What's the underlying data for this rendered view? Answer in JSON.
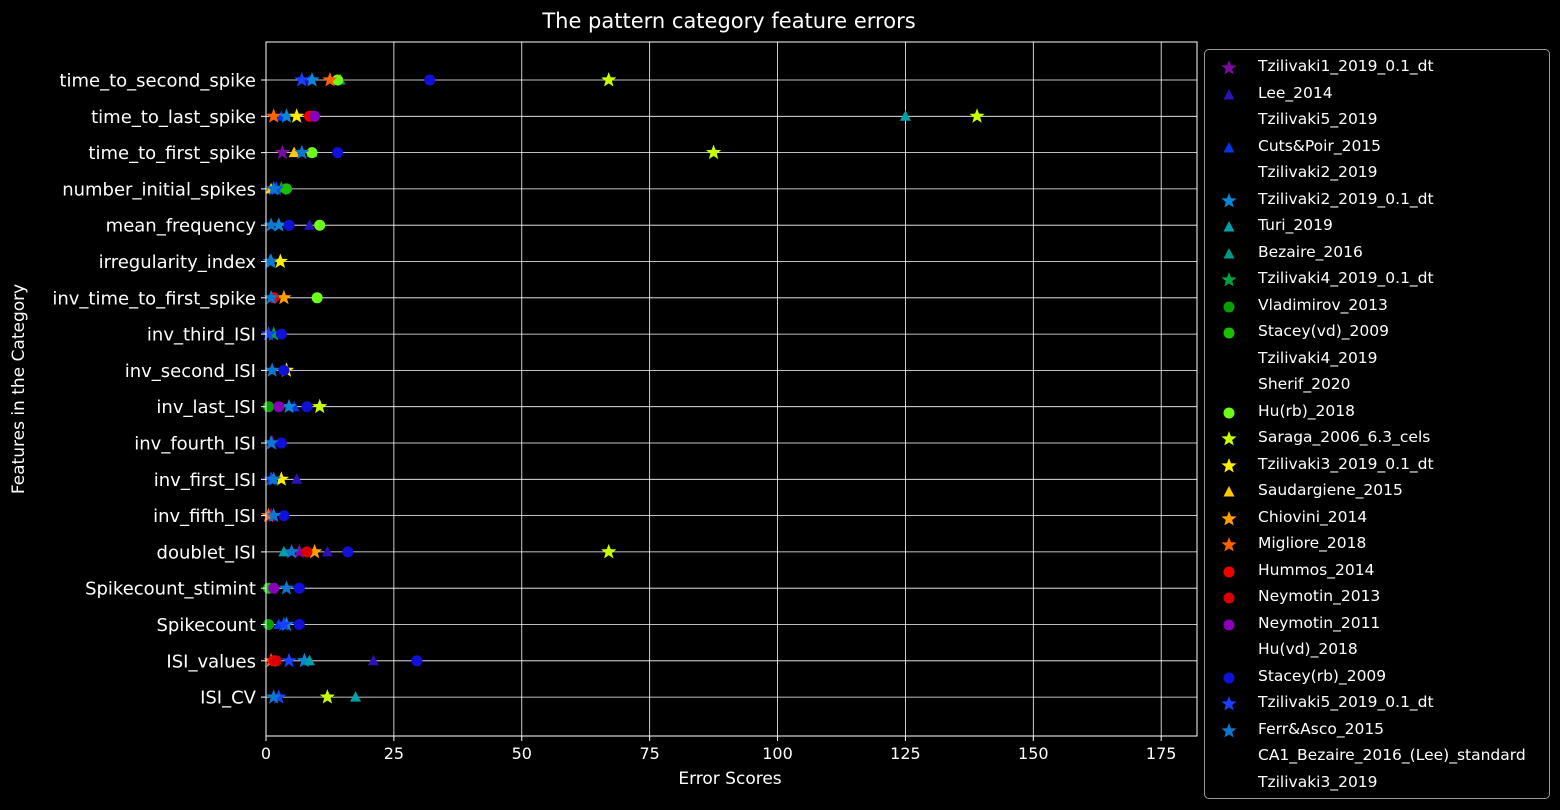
{
  "chart_data": {
    "type": "scatter",
    "orientation": "horizontal",
    "title": "The pattern category feature errors",
    "xlabel": "Error Scores",
    "ylabel": "Features in the Category",
    "xlim": [
      0,
      182
    ],
    "xticks": [
      0,
      25,
      50,
      75,
      100,
      125,
      150,
      175
    ],
    "grid": true,
    "legend_position": "outside-right",
    "categories": [
      "time_to_second_spike",
      "time_to_last_spike",
      "time_to_first_spike",
      "number_initial_spikes",
      "mean_frequency",
      "irregularity_index",
      "inv_time_to_first_spike",
      "inv_third_ISI",
      "inv_second_ISI",
      "inv_last_ISI",
      "inv_fourth_ISI",
      "inv_first_ISI",
      "inv_fifth_ISI",
      "doublet_ISI",
      "Spikecount_stimint",
      "Spikecount",
      "ISI_values",
      "ISI_CV"
    ],
    "series": [
      {
        "name": "Tzilivaki1_2019_0.1_dt",
        "color": "#7b0aa0",
        "marker": "star",
        "values": {
          "time_to_first_spike": 3.2,
          "inv_fourth_ISI": 1.2,
          "inv_fifth_ISI": 1.0,
          "doublet_ISI": 6.5
        }
      },
      {
        "name": "Lee_2014",
        "color": "#2a12b8",
        "marker": "triangle",
        "values": {
          "time_to_second_spike": 8.5,
          "mean_frequency": 8.5,
          "inv_first_ISI": 6.0,
          "ISI_values": 21.0,
          "doublet_ISI": 12.0
        }
      },
      {
        "name": "Tzilivaki5_2019",
        "color": "#000000",
        "marker": "none",
        "values": {}
      },
      {
        "name": "Cuts&Poir_2015",
        "color": "#0035e8",
        "marker": "triangle",
        "values": {
          "time_to_last_spike": 3.0,
          "inv_last_ISI": 5.5,
          "Spikecount": 2.5
        }
      },
      {
        "name": "Tzilivaki2_2019",
        "color": "#000000",
        "marker": "none",
        "values": {}
      },
      {
        "name": "Tzilivaki2_2019_0.1_dt",
        "color": "#0a88d8",
        "marker": "star",
        "values": {
          "time_to_second_spike": 9.0,
          "time_to_last_spike": 4.0,
          "mean_frequency": 2.5,
          "irregularity_index": 1.0,
          "inv_last_ISI": 4.5,
          "ISI_values": 7.5,
          "Spikecount": 4.0
        }
      },
      {
        "name": "Turi_2019",
        "color": "#00a0a8",
        "marker": "triangle",
        "values": {
          "time_to_last_spike": 125.0,
          "ISI_CV": 17.5,
          "ISI_values": 8.5,
          "doublet_ISI": 3.5
        }
      },
      {
        "name": "Bezaire_2016",
        "color": "#009a88",
        "marker": "triangle",
        "values": {
          "time_to_second_spike": 14.5,
          "time_to_first_spike": 9.0
        }
      },
      {
        "name": "Tzilivaki4_2019_0.1_dt",
        "color": "#00a040",
        "marker": "star",
        "values": {
          "number_initial_spikes": 3.0,
          "inv_third_ISI": 1.5
        }
      },
      {
        "name": "Vladimirov_2013",
        "color": "#06a000",
        "marker": "circle",
        "values": {
          "inv_last_ISI": 0.5,
          "Spikecount": 0.5
        }
      },
      {
        "name": "Stacey(vd)_2009",
        "color": "#18c000",
        "marker": "circle",
        "values": {
          "number_initial_spikes": 4.0,
          "Spikecount_stimint": 0.5
        }
      },
      {
        "name": "Tzilivaki4_2019",
        "color": "#000000",
        "marker": "none",
        "values": {}
      },
      {
        "name": "Sherif_2020",
        "color": "#000000",
        "marker": "none",
        "values": {}
      },
      {
        "name": "Hu(rb)_2018",
        "color": "#6cff18",
        "marker": "circle",
        "values": {
          "time_to_second_spike": 14.0,
          "mean_frequency": 10.5,
          "inv_time_to_first_spike": 10.0,
          "time_to_first_spike": 9.0
        }
      },
      {
        "name": "Saraga_2006_6.3_cels",
        "color": "#c8ff00",
        "marker": "star",
        "values": {
          "time_to_second_spike": 67.0,
          "time_to_first_spike": 87.5,
          "time_to_last_spike": 139.0,
          "doublet_ISI": 67.0,
          "ISI_CV": 12.0,
          "inv_last_ISI": 10.5
        }
      },
      {
        "name": "Tzilivaki3_2019_0.1_dt",
        "color": "#ffee00",
        "marker": "star",
        "values": {
          "time_to_last_spike": 6.0,
          "irregularity_index": 2.8,
          "inv_second_ISI": 4.0,
          "inv_first_ISI": 3.0
        }
      },
      {
        "name": "Saudargiene_2015",
        "color": "#ffc800",
        "marker": "triangle",
        "values": {
          "time_to_first_spike": 5.5,
          "number_initial_spikes": 1.0
        }
      },
      {
        "name": "Chiovini_2014",
        "color": "#ffa000",
        "marker": "star",
        "values": {
          "doublet_ISI": 9.5,
          "inv_time_to_first_spike": 3.5
        }
      },
      {
        "name": "Migliore_2018",
        "color": "#ff6000",
        "marker": "star",
        "values": {
          "time_to_second_spike": 12.5,
          "time_to_last_spike": 1.5,
          "inv_fifth_ISI": 0.5,
          "ISI_values": 1.0
        }
      },
      {
        "name": "Hummos_2014",
        "color": "#f00000",
        "marker": "circle",
        "values": {
          "time_to_last_spike": 8.5,
          "ISI_values": 1.5,
          "inv_time_to_first_spike": 1.5
        }
      },
      {
        "name": "Neymotin_2013",
        "color": "#d80000",
        "marker": "circle",
        "values": {
          "doublet_ISI": 8.0,
          "ISI_values": 2.0
        }
      },
      {
        "name": "Neymotin_2011",
        "color": "#8a00b8",
        "marker": "circle",
        "values": {
          "inv_last_ISI": 2.5,
          "Spikecount_stimint": 1.5,
          "time_to_last_spike": 9.5
        }
      },
      {
        "name": "Hu(vd)_2018",
        "color": "#000000",
        "marker": "none",
        "values": {}
      },
      {
        "name": "Stacey(rb)_2009",
        "color": "#1010d8",
        "marker": "circle",
        "values": {
          "time_to_second_spike": 32.0,
          "time_to_first_spike": 14.0,
          "mean_frequency": 4.5,
          "inv_third_ISI": 3.0,
          "inv_second_ISI": 3.5,
          "inv_last_ISI": 8.0,
          "inv_fourth_ISI": 3.0,
          "inv_fifth_ISI": 3.5,
          "doublet_ISI": 16.0,
          "Spikecount_stimint": 6.5,
          "Spikecount": 6.5,
          "ISI_values": 29.5
        }
      },
      {
        "name": "Tzilivaki5_2019_0.1_dt",
        "color": "#1a40ff",
        "marker": "star",
        "values": {
          "time_to_second_spike": 7.0,
          "number_initial_spikes": 2.0,
          "inv_third_ISI": 0.5,
          "inv_first_ISI": 1.0,
          "ISI_values": 4.5,
          "Spikecount": 3.5,
          "ISI_CV": 2.5
        }
      },
      {
        "name": "Ferr&Asco_2015",
        "color": "#0a78d0",
        "marker": "star",
        "values": {
          "time_to_first_spike": 7.0,
          "number_initial_spikes": 1.5,
          "mean_frequency": 1.0,
          "irregularity_index": 0.8,
          "inv_time_to_first_spike": 1.0,
          "inv_second_ISI": 1.2,
          "inv_fourth_ISI": 1.0,
          "inv_first_ISI": 1.5,
          "inv_fifth_ISI": 1.5,
          "doublet_ISI": 5.0,
          "Spikecount_stimint": 4.0,
          "ISI_CV": 1.5
        }
      },
      {
        "name": "CA1_Bezaire_2016_(Lee)_standard",
        "color": "#000000",
        "marker": "none",
        "values": {}
      },
      {
        "name": "Tzilivaki3_2019",
        "color": "#000000",
        "marker": "none",
        "values": {}
      }
    ]
  }
}
